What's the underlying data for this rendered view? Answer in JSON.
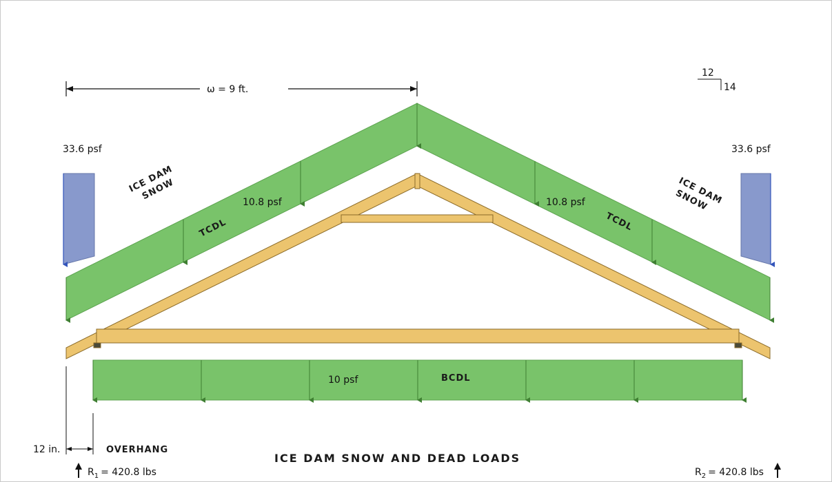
{
  "diagram": {
    "title": "ICE DAM SNOW AND DEAD LOADS",
    "span_label": "ω = 9 ft.",
    "pitch": {
      "rise_run": "12",
      "rise": "14"
    },
    "ice_dam_load": "33.6 psf",
    "ice_dam_label_line1": "ICE DAM",
    "ice_dam_label_line2": "SNOW",
    "tcdl_load": "10.8 psf",
    "tcdl_label": "TCDL",
    "bcdl_load": "10 psf",
    "bcdl_label": "BCDL",
    "overhang_dim": "12 in.",
    "overhang_label": "OVERHANG",
    "reaction_left": {
      "symbol": "R",
      "sub": "1",
      "value": "= 420.8 lbs"
    },
    "reaction_right": {
      "symbol": "R",
      "sub": "2",
      "value": "= 420.8 lbs"
    },
    "colors": {
      "load_green": "#79c36a",
      "truss_wood": "#ecc46e",
      "ice_blue": "#8899cc",
      "arrow_green": "#3f7f32"
    }
  }
}
